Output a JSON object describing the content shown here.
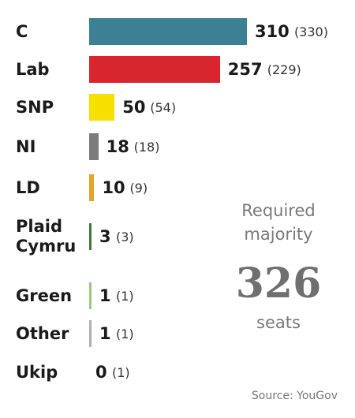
{
  "chart_data": {
    "type": "bar",
    "orientation": "horizontal",
    "categories": [
      "C",
      "Lab",
      "SNP",
      "NI",
      "LD",
      "Plaid Cymru",
      "Green",
      "Other",
      "Ukip"
    ],
    "values": [
      310,
      257,
      50,
      18,
      10,
      3,
      1,
      1,
      0
    ],
    "previous": [
      "(330)",
      "(229)",
      "(54)",
      "(18)",
      "(9)",
      "(3)",
      "(1)",
      "(1)",
      "(1)"
    ],
    "colors": [
      "#3b8093",
      "#d8262f",
      "#f7e000",
      "#7b7b7b",
      "#e4a52a",
      "#3f7a3a",
      "#9cc87c",
      "#b0b0b0",
      "#888888"
    ],
    "annotation_label": "Required majority",
    "annotation_value": 326,
    "annotation_unit": "seats",
    "source": "Source: YouGov"
  }
}
